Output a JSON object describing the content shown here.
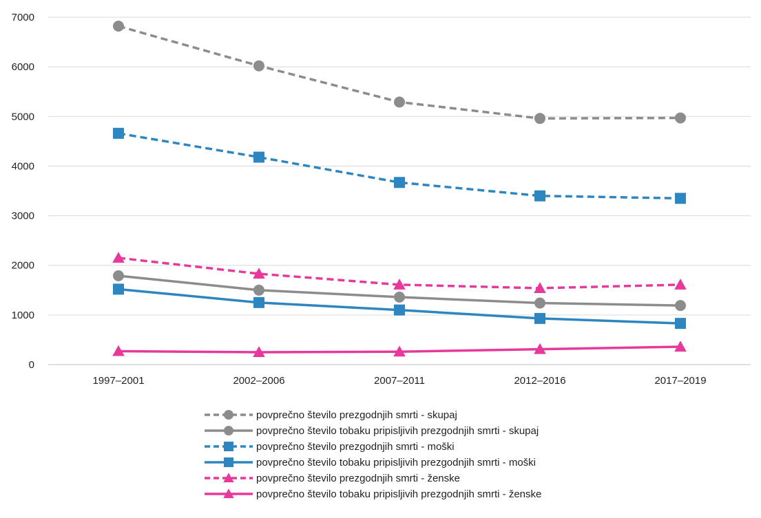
{
  "chart_data": {
    "type": "line",
    "title": "",
    "xlabel": "",
    "ylabel": "",
    "categories": [
      "1997–2001",
      "2002–2006",
      "2007–2011",
      "2012–2016",
      "2017–2019"
    ],
    "ylim": [
      0,
      7000
    ],
    "yticks": [
      0,
      1000,
      2000,
      3000,
      4000,
      5000,
      6000,
      7000
    ],
    "grid": "horizontal",
    "legend_position": "bottom",
    "series": [
      {
        "name": "povprečno število prezgodnjih smrti  - skupaj",
        "values": [
          6820,
          6020,
          5290,
          4960,
          4970
        ],
        "color": "#8c8c8c",
        "dashed": true,
        "marker": "circle"
      },
      {
        "name": "povprečno število tobaku pripisljivih prezgodnjih smrti  - skupaj",
        "values": [
          1790,
          1500,
          1360,
          1240,
          1190
        ],
        "color": "#8c8c8c",
        "dashed": false,
        "marker": "circle"
      },
      {
        "name": "povprečno število prezgodnjih smrti  - moški",
        "values": [
          4660,
          4180,
          3670,
          3400,
          3350
        ],
        "color": "#2e86c1",
        "dashed": true,
        "marker": "square"
      },
      {
        "name": "povprečno število tobaku pripisljivih prezgodnjih smrti  - moški",
        "values": [
          1520,
          1250,
          1100,
          930,
          830
        ],
        "color": "#2e86c1",
        "dashed": false,
        "marker": "square"
      },
      {
        "name": "povprečno število prezgodnjih smrti  - ženske",
        "values": [
          2150,
          1830,
          1610,
          1540,
          1610
        ],
        "color": "#e6399b",
        "dashed": true,
        "marker": "triangle"
      },
      {
        "name": "povprečno število tobaku pripisljivih prezgodnjih smrti  - ženske",
        "values": [
          270,
          250,
          260,
          310,
          360
        ],
        "color": "#e6399b",
        "dashed": false,
        "marker": "triangle"
      }
    ]
  }
}
